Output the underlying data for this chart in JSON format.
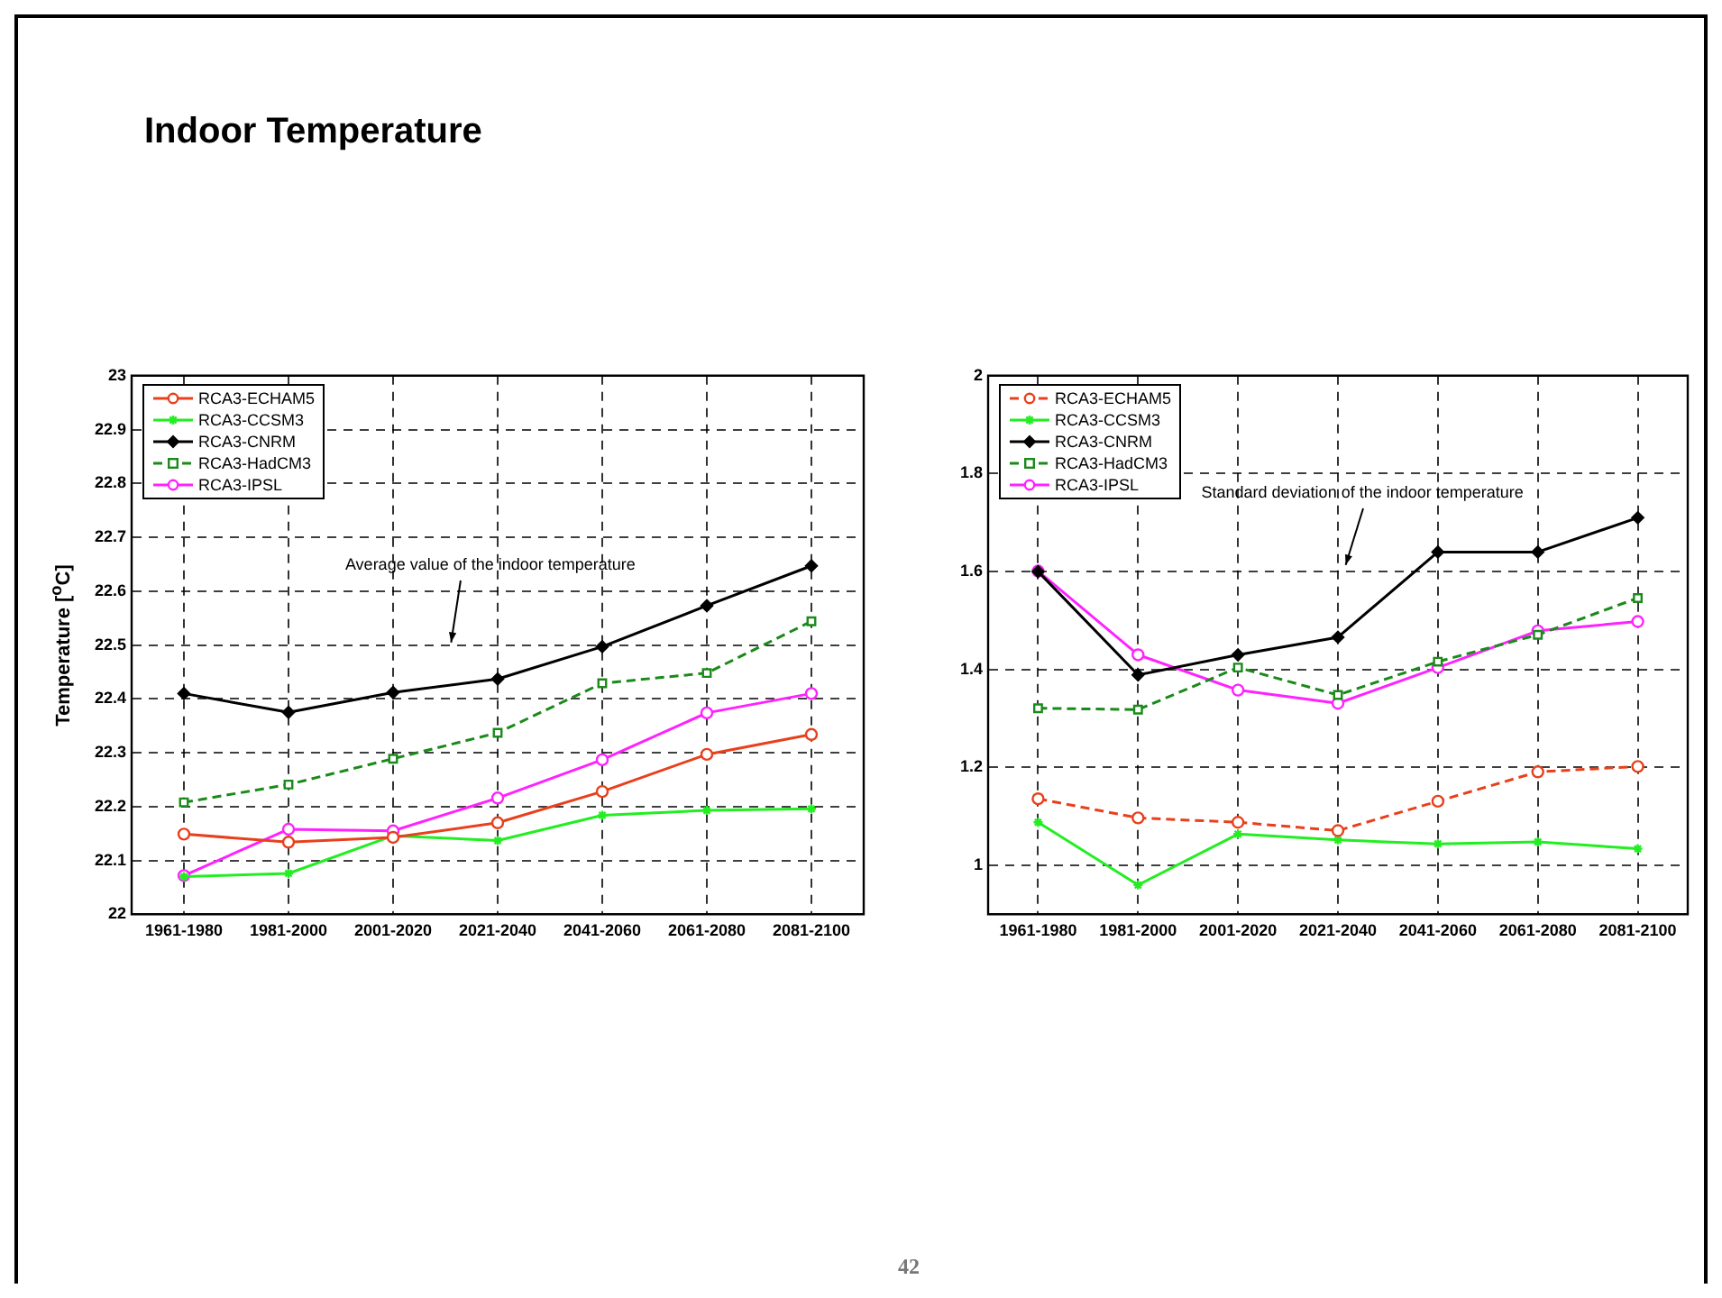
{
  "chart_data": [
    {
      "type": "line",
      "title": "Indoor Temperature",
      "ylabel": "Temperature [$^{o}$C]",
      "annotations": [
        "Average value of the indoor temperature"
      ],
      "categories": [
        "1961-1980",
        "1981-2000",
        "2001-2020",
        "2021-2040",
        "2041-2060",
        "2061-2080",
        "2081-2100"
      ],
      "series": [
        {
          "name": "RCA3-ECHAM5",
          "color": "#e8401c",
          "marker": "circle",
          "line_style": "solid",
          "values": [
            22.149,
            22.134,
            22.143,
            22.17,
            22.228,
            22.297,
            22.334
          ]
        },
        {
          "name": "RCA3-CCSM3",
          "color": "#22ee22",
          "marker": "cross",
          "line_style": "solid",
          "values": [
            22.07,
            22.076,
            22.146,
            22.137,
            22.184,
            22.193,
            22.196
          ]
        },
        {
          "name": "RCA3-CNRM",
          "color": "#000000",
          "marker": "diamond",
          "line_style": "solid",
          "values": [
            22.41,
            22.375,
            22.412,
            22.437,
            22.497,
            22.573,
            22.647
          ]
        },
        {
          "name": "RCA3-HadCM3",
          "color": "#1a8a1a",
          "marker": "square",
          "line_style": "dashed",
          "values": [
            22.208,
            22.241,
            22.289,
            22.337,
            22.429,
            22.448,
            22.544
          ]
        },
        {
          "name": "RCA3-IPSL",
          "color": "#ff22ff",
          "marker": "circle",
          "line_style": "solid",
          "values": [
            22.072,
            22.158,
            22.155,
            22.216,
            22.287,
            22.374,
            22.41
          ]
        }
      ],
      "ylim": [
        22,
        23
      ],
      "yticks": [
        22,
        22.1,
        22.2,
        22.3,
        22.4,
        22.5,
        22.6,
        22.7,
        22.8,
        22.9,
        23
      ],
      "grid": true,
      "legend": "top left"
    },
    {
      "type": "line",
      "annotations": [
        "Standard deviation of the indoor temperature",
        "42"
      ],
      "categories": [
        "1961-1980",
        "1981-2000",
        "2001-2020",
        "2021-2040",
        "2041-2060",
        "2061-2080",
        "2081-2100"
      ],
      "series": [
        {
          "name": "RCA3-ECHAM5",
          "color": "#e8401c",
          "marker": "circle",
          "line_style": "dashed",
          "values": [
            1.136,
            1.097,
            1.088,
            1.071,
            1.131,
            1.191,
            1.202
          ]
        },
        {
          "name": "RCA3-CCSM3",
          "color": "#22ee22",
          "marker": "cross",
          "line_style": "solid",
          "values": [
            1.088,
            0.96,
            1.064,
            1.052,
            1.044,
            1.048,
            1.034
          ]
        },
        {
          "name": "RCA3-CNRM",
          "color": "#000000",
          "marker": "diamond",
          "line_style": "solid",
          "values": [
            1.6,
            1.389,
            1.43,
            1.466,
            1.64,
            1.64,
            1.71
          ]
        },
        {
          "name": "RCA3-HadCM3",
          "color": "#1a8a1a",
          "marker": "square",
          "line_style": "dashed",
          "values": [
            1.321,
            1.318,
            1.404,
            1.348,
            1.416,
            1.471,
            1.546
          ]
        },
        {
          "name": "RCA3-IPSL",
          "color": "#ff22ff",
          "marker": "circle",
          "line_style": "solid",
          "values": [
            1.601,
            1.43,
            1.358,
            1.331,
            1.404,
            1.479,
            1.498
          ]
        }
      ],
      "ylim": [
        0.9,
        2
      ],
      "yticks": [
        1,
        1.2,
        1.4,
        1.6,
        1.8,
        2
      ],
      "grid": true,
      "legend": "top left"
    }
  ]
}
